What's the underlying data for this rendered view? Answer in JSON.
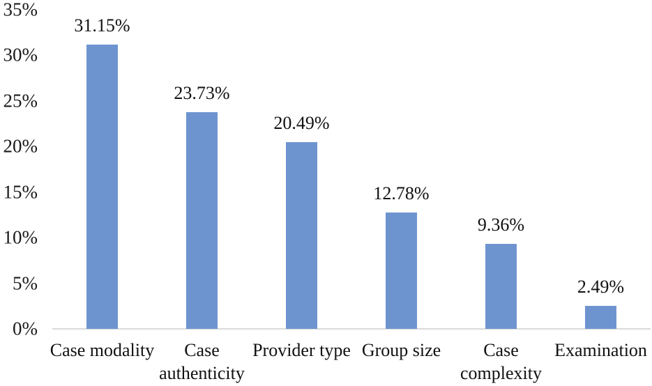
{
  "chart_data": {
    "type": "bar",
    "title": "",
    "xlabel": "",
    "ylabel": "",
    "categories": [
      "Case modality",
      "Case authenticity",
      "Provider type",
      "Group size",
      "Case complexity",
      "Examination"
    ],
    "values": [
      31.15,
      23.73,
      20.49,
      12.78,
      9.36,
      2.49
    ],
    "value_labels": [
      "31.15%",
      "23.73%",
      "20.49%",
      "12.78%",
      "9.36%",
      "2.49%"
    ],
    "yticks": [
      "35%",
      "30%",
      "25%",
      "20%",
      "15%",
      "10%",
      "5%",
      "0%"
    ],
    "ytick_values": [
      35,
      30,
      25,
      20,
      15,
      10,
      5,
      0
    ],
    "ylim": [
      0,
      35
    ],
    "grid": "off",
    "legend": "none",
    "bar_color": "#6e94d0",
    "axis_line_color": "#d9d9d9",
    "text_color": "#111111"
  },
  "layout_note": "single-series vertical bar chart, data labels above bars"
}
